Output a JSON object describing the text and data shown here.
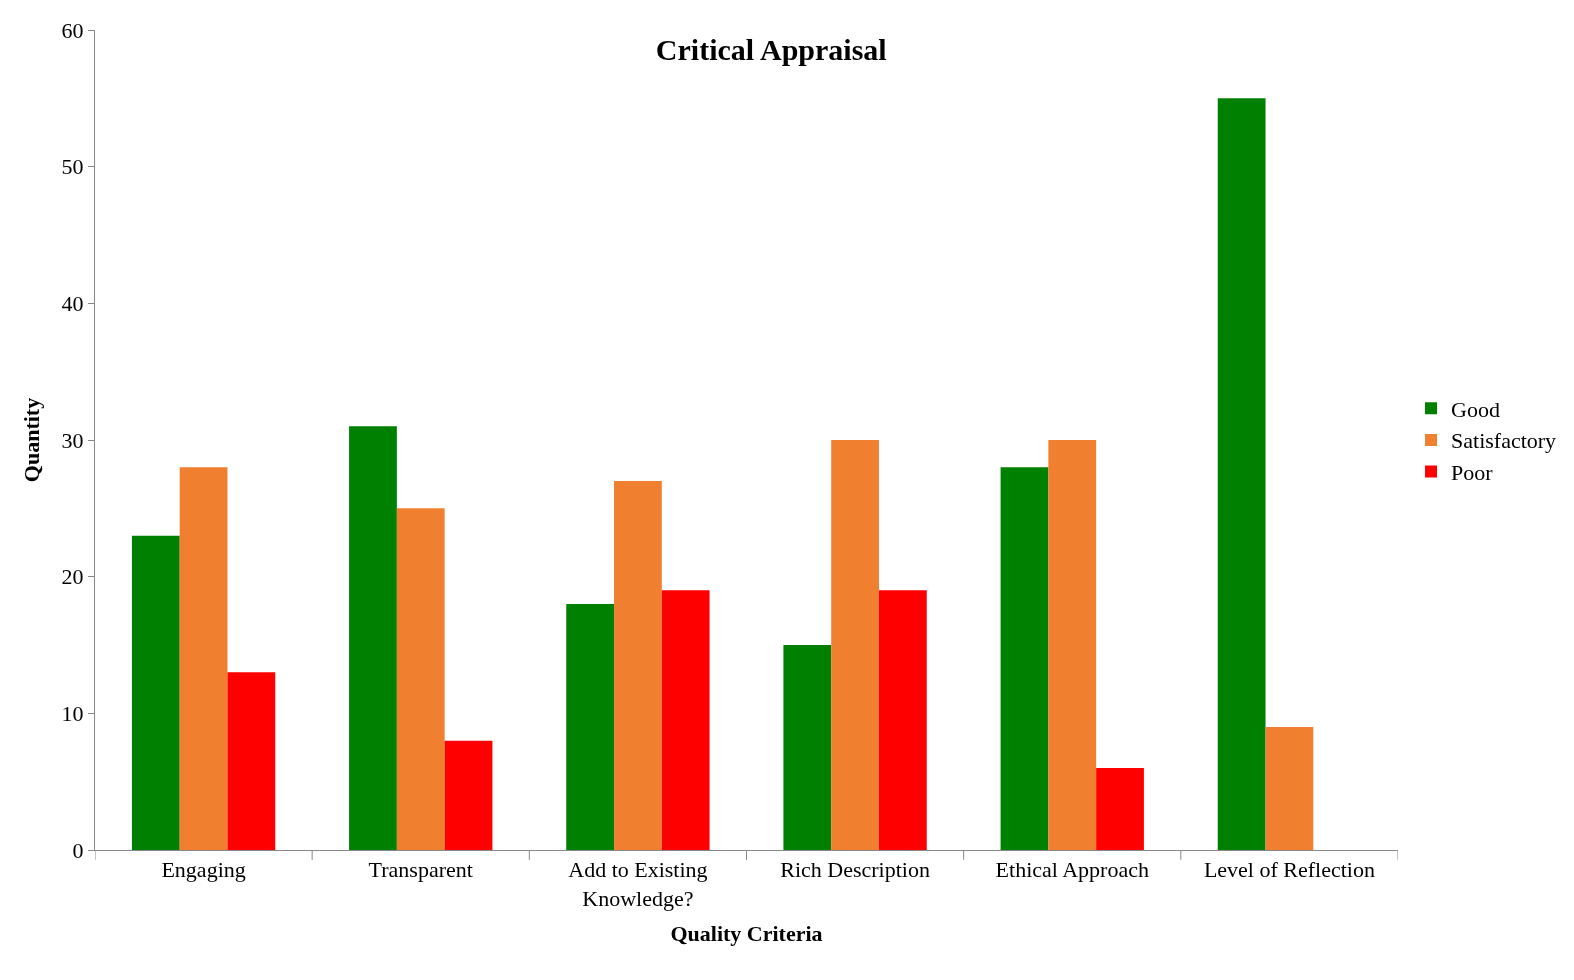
{
  "chart_data": {
    "type": "bar",
    "title": "Critical Appraisal",
    "xlabel": "Quality Criteria",
    "ylabel": "Quantity",
    "categories": [
      "Engaging",
      "Transparent",
      "Add to Existing Knowledge?",
      "Rich Description",
      "Ethical Approach",
      "Level of Reflection"
    ],
    "series": [
      {
        "name": "Good",
        "color": "#008000",
        "values": [
          23,
          31,
          18,
          15,
          28,
          55
        ]
      },
      {
        "name": "Satisfactory",
        "color": "#f07f30",
        "values": [
          28,
          25,
          27,
          30,
          30,
          9
        ]
      },
      {
        "name": "Poor",
        "color": "#ff0000",
        "values": [
          13,
          8,
          19,
          19,
          6,
          null
        ]
      }
    ],
    "ylim": [
      0,
      60
    ],
    "yticks": [
      0,
      10,
      20,
      30,
      40,
      50,
      60
    ],
    "legend": "right"
  }
}
